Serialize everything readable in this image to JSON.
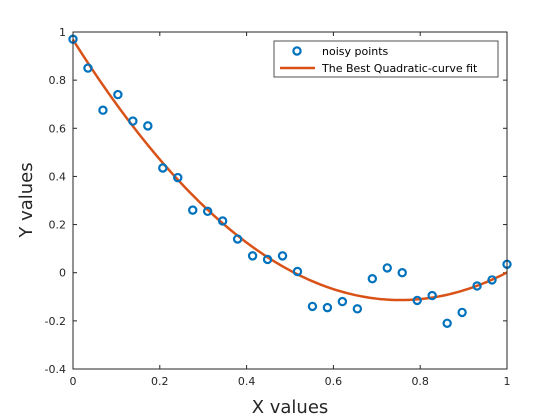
{
  "chart_data": {
    "type": "scatter",
    "title": "",
    "xlabel": "X values",
    "ylabel": "Y values",
    "xlim": [
      0,
      1
    ],
    "ylim": [
      -0.4,
      1
    ],
    "x_ticks": [
      "0",
      "0.2",
      "0.4",
      "0.6",
      "0.8",
      "1"
    ],
    "y_ticks": [
      "-0.4",
      "-0.2",
      "0",
      "0.2",
      "0.4",
      "0.6",
      "0.8",
      "1"
    ],
    "grid": false,
    "legend_position": "top-right",
    "series": [
      {
        "name": "noisy points",
        "kind": "scatter",
        "marker": "circle",
        "color": "#0072BD",
        "x": [
          0.0,
          0.0345,
          0.069,
          0.1034,
          0.1379,
          0.1724,
          0.2069,
          0.2414,
          0.2759,
          0.3103,
          0.3448,
          0.3793,
          0.4138,
          0.4483,
          0.4828,
          0.5172,
          0.5517,
          0.5862,
          0.6207,
          0.6552,
          0.6897,
          0.7241,
          0.7586,
          0.7931,
          0.8276,
          0.8621,
          0.8966,
          0.931,
          0.9655,
          1.0
        ],
        "y": [
          0.97,
          0.85,
          0.675,
          0.74,
          0.63,
          0.61,
          0.435,
          0.395,
          0.26,
          0.255,
          0.215,
          0.14,
          0.07,
          0.055,
          0.07,
          0.005,
          -0.14,
          -0.145,
          -0.12,
          -0.15,
          -0.025,
          0.02,
          0.0,
          -0.115,
          -0.095,
          -0.21,
          -0.165,
          -0.055,
          -0.03,
          0.035
        ]
      },
      {
        "name": "The Best Quadratic-curve fit",
        "kind": "line",
        "color": "#D95319",
        "coefficients": {
          "a": 1.9,
          "b": -2.867,
          "c": 0.968
        }
      }
    ]
  }
}
